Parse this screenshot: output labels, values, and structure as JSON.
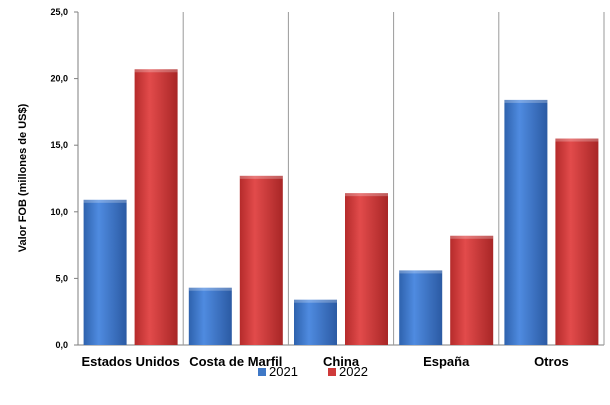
{
  "chart_data": {
    "type": "bar",
    "categories": [
      "Estados Unidos",
      "Costa de Marfil",
      "China",
      "España",
      "Otros"
    ],
    "series": [
      {
        "name": "2021",
        "values": [
          10.9,
          4.3,
          3.4,
          5.6,
          18.4
        ],
        "color": "#3f78c6"
      },
      {
        "name": "2022",
        "values": [
          20.7,
          12.7,
          11.4,
          8.2,
          15.5
        ],
        "color": "#cf3a3a"
      }
    ],
    "title": "",
    "xlabel": "",
    "ylabel": "Valor FOB (millones de US$)",
    "ylim": [
      0,
      25
    ],
    "yticks": [
      "0,0",
      "5,0",
      "10,0",
      "15,0",
      "20,0",
      "25,0"
    ],
    "grid": "vertical category separators",
    "legend": "bottom-center"
  }
}
